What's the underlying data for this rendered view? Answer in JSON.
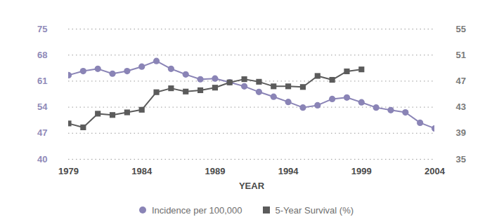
{
  "chart_data": {
    "type": "line",
    "x": [
      1979,
      1980,
      1981,
      1982,
      1983,
      1984,
      1985,
      1986,
      1987,
      1988,
      1989,
      1990,
      1991,
      1992,
      1993,
      1994,
      1995,
      1996,
      1997,
      1998,
      1999,
      2000,
      2001,
      2002,
      2003,
      2004
    ],
    "xlabel": "YEAR",
    "xlim": [
      1979,
      2004
    ],
    "xticks": [
      1979,
      1984,
      1989,
      1994,
      1999,
      2004
    ],
    "ylim": [
      40,
      75
    ],
    "yticks": [
      40,
      47,
      54,
      61,
      68,
      75
    ],
    "y2lim": [
      35,
      55
    ],
    "y2ticks": [
      35,
      39,
      43,
      47,
      51,
      55
    ],
    "grid": true,
    "legend": "bottom",
    "series": [
      {
        "name": "Incidence per 100,000",
        "color": "#8a84b6",
        "marker": "circle",
        "values": [
          62.6,
          63.7,
          64.3,
          63.0,
          63.7,
          64.9,
          66.4,
          64.3,
          62.8,
          61.5,
          61.7,
          60.7,
          59.6,
          58.1,
          56.8,
          55.4,
          53.9,
          54.5,
          56.2,
          56.6,
          55.3,
          53.9,
          53.2,
          52.6,
          49.8,
          48.3
        ]
      },
      {
        "name": "5-Year Survival (%)",
        "color": "#5b5b5b",
        "marker": "square",
        "axis": "y2",
        "values": [
          40.5,
          39.9,
          42.0,
          41.8,
          42.2,
          42.6,
          45.3,
          45.9,
          45.4,
          45.6,
          46.0,
          46.8,
          47.3,
          46.9,
          46.2,
          46.2,
          46.1,
          47.8,
          47.2,
          48.5,
          48.8,
          null,
          null,
          null,
          null,
          null
        ]
      }
    ]
  }
}
